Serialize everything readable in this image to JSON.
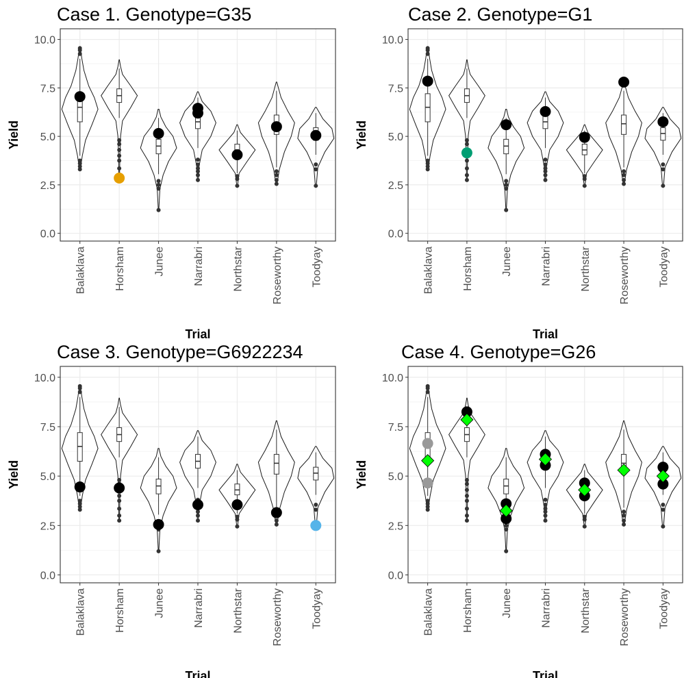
{
  "chart_data": [
    {
      "type": "violin",
      "title": "Case 1. Genotype=G35",
      "xlabel": "Trial",
      "ylabel": "Yield",
      "ylim": [
        0,
        10.5
      ],
      "yticks": [
        "0.0",
        "2.5",
        "5.0",
        "7.5",
        "10.0"
      ],
      "categories": [
        "Balaklava",
        "Horsham",
        "Junee",
        "Narrabri",
        "Northstar",
        "Roseworthy",
        "Toodyay"
      ],
      "highlight_points": [
        {
          "trial": "Balaklava",
          "y": 7.05,
          "color": "#000000",
          "shape": "circle"
        },
        {
          "trial": "Horsham",
          "y": 2.85,
          "color": "#E69F00",
          "shape": "circle"
        },
        {
          "trial": "Junee",
          "y": 5.15,
          "color": "#000000",
          "shape": "circle"
        },
        {
          "trial": "Narrabri",
          "y": 6.45,
          "color": "#000000",
          "shape": "circle"
        },
        {
          "trial": "Narrabri",
          "y": 6.2,
          "color": "#000000",
          "shape": "circle"
        },
        {
          "trial": "Northstar",
          "y": 4.05,
          "color": "#000000",
          "shape": "circle"
        },
        {
          "trial": "Roseworthy",
          "y": 5.5,
          "color": "#000000",
          "shape": "circle"
        },
        {
          "trial": "Toodyay",
          "y": 5.05,
          "color": "#000000",
          "shape": "circle"
        }
      ]
    },
    {
      "type": "violin",
      "title": "Case 2. Genotype=G1",
      "xlabel": "Trial",
      "ylabel": "Yield",
      "ylim": [
        0,
        10.5
      ],
      "yticks": [
        "0.0",
        "2.5",
        "5.0",
        "7.5",
        "10.0"
      ],
      "categories": [
        "Balaklava",
        "Horsham",
        "Junee",
        "Narrabri",
        "Northstar",
        "Roseworthy",
        "Toodyay"
      ],
      "highlight_points": [
        {
          "trial": "Balaklava",
          "y": 7.85,
          "color": "#000000",
          "shape": "circle"
        },
        {
          "trial": "Horsham",
          "y": 4.15,
          "color": "#009E73",
          "shape": "circle"
        },
        {
          "trial": "Junee",
          "y": 5.6,
          "color": "#000000",
          "shape": "circle"
        },
        {
          "trial": "Narrabri",
          "y": 6.28,
          "color": "#000000",
          "shape": "circle"
        },
        {
          "trial": "Northstar",
          "y": 4.95,
          "color": "#000000",
          "shape": "circle"
        },
        {
          "trial": "Roseworthy",
          "y": 7.8,
          "color": "#000000",
          "shape": "circle"
        },
        {
          "trial": "Toodyay",
          "y": 5.75,
          "color": "#000000",
          "shape": "circle"
        }
      ]
    },
    {
      "type": "violin",
      "title": "Case 3. Genotype=G6922234",
      "xlabel": "Trial",
      "ylabel": "Yield",
      "ylim": [
        0,
        10.5
      ],
      "yticks": [
        "0.0",
        "2.5",
        "5.0",
        "7.5",
        "10.0"
      ],
      "categories": [
        "Balaklava",
        "Horsham",
        "Junee",
        "Narrabri",
        "Northstar",
        "Roseworthy",
        "Toodyay"
      ],
      "highlight_points": [
        {
          "trial": "Balaklava",
          "y": 4.45,
          "color": "#000000",
          "shape": "circle"
        },
        {
          "trial": "Horsham",
          "y": 4.4,
          "color": "#000000",
          "shape": "circle"
        },
        {
          "trial": "Junee",
          "y": 2.55,
          "color": "#000000",
          "shape": "circle"
        },
        {
          "trial": "Narrabri",
          "y": 3.55,
          "color": "#000000",
          "shape": "circle"
        },
        {
          "trial": "Northstar",
          "y": 3.55,
          "color": "#000000",
          "shape": "circle"
        },
        {
          "trial": "Roseworthy",
          "y": 3.15,
          "color": "#000000",
          "shape": "circle"
        },
        {
          "trial": "Toodyay",
          "y": 2.5,
          "color": "#56B4E9",
          "shape": "circle"
        }
      ]
    },
    {
      "type": "violin",
      "title": "Case 4. Genotype=G26",
      "xlabel": "Trial",
      "ylabel": "Yield",
      "ylim": [
        0,
        10.5
      ],
      "yticks": [
        "0.0",
        "2.5",
        "5.0",
        "7.5",
        "10.0"
      ],
      "categories": [
        "Balaklava",
        "Horsham",
        "Junee",
        "Narrabri",
        "Northstar",
        "Roseworthy",
        "Toodyay"
      ],
      "highlight_points": [
        {
          "trial": "Balaklava",
          "y": 6.65,
          "color": "#999999",
          "shape": "circle"
        },
        {
          "trial": "Balaklava",
          "y": 4.65,
          "color": "#999999",
          "shape": "circle"
        },
        {
          "trial": "Balaklava",
          "y": 5.78,
          "color": "#00FF00",
          "shape": "diamond"
        },
        {
          "trial": "Horsham",
          "y": 8.25,
          "color": "#000000",
          "shape": "circle"
        },
        {
          "trial": "Horsham",
          "y": 7.85,
          "color": "#00FF00",
          "shape": "diamond"
        },
        {
          "trial": "Junee",
          "y": 3.6,
          "color": "#000000",
          "shape": "circle"
        },
        {
          "trial": "Junee",
          "y": 2.85,
          "color": "#000000",
          "shape": "circle"
        },
        {
          "trial": "Junee",
          "y": 3.25,
          "color": "#00FF00",
          "shape": "diamond"
        },
        {
          "trial": "Narrabri",
          "y": 6.1,
          "color": "#000000",
          "shape": "circle"
        },
        {
          "trial": "Narrabri",
          "y": 5.55,
          "color": "#000000",
          "shape": "circle"
        },
        {
          "trial": "Narrabri",
          "y": 5.85,
          "color": "#00FF00",
          "shape": "diamond"
        },
        {
          "trial": "Northstar",
          "y": 4.65,
          "color": "#000000",
          "shape": "circle"
        },
        {
          "trial": "Northstar",
          "y": 4.0,
          "color": "#000000",
          "shape": "circle"
        },
        {
          "trial": "Northstar",
          "y": 4.3,
          "color": "#00FF00",
          "shape": "diamond"
        },
        {
          "trial": "Roseworthy",
          "y": 5.3,
          "color": "#00FF00",
          "shape": "diamond"
        },
        {
          "trial": "Toodyay",
          "y": 5.45,
          "color": "#000000",
          "shape": "circle"
        },
        {
          "trial": "Toodyay",
          "y": 4.6,
          "color": "#000000",
          "shape": "circle"
        },
        {
          "trial": "Toodyay",
          "y": 5.0,
          "color": "#00FF00",
          "shape": "diamond"
        }
      ]
    }
  ],
  "trial_distributions": {
    "Balaklava": {
      "median": 6.5,
      "q1": 5.75,
      "q3": 7.2,
      "whisker_low": 4.0,
      "whisker_high": 9.0,
      "outliers": [
        3.3,
        3.45,
        3.6,
        3.75,
        9.25,
        9.45,
        9.55
      ],
      "density": [
        [
          3.3,
          0.01
        ],
        [
          4.0,
          0.06
        ],
        [
          4.8,
          0.14
        ],
        [
          5.6,
          0.3
        ],
        [
          6.4,
          0.45
        ],
        [
          7.0,
          0.36
        ],
        [
          7.6,
          0.22
        ],
        [
          8.4,
          0.1
        ],
        [
          9.0,
          0.05
        ],
        [
          9.6,
          0.01
        ]
      ]
    },
    "Horsham": {
      "median": 7.1,
      "q1": 6.75,
      "q3": 7.45,
      "whisker_low": 5.95,
      "whisker_high": 8.5,
      "outliers": [
        2.75,
        3.0,
        3.35,
        3.75,
        4.0,
        4.3,
        4.6,
        4.8
      ],
      "density": [
        [
          2.75,
          0.01
        ],
        [
          4.0,
          0.02
        ],
        [
          5.0,
          0.04
        ],
        [
          5.8,
          0.1
        ],
        [
          6.5,
          0.35
        ],
        [
          7.1,
          0.55
        ],
        [
          7.6,
          0.35
        ],
        [
          8.2,
          0.1
        ],
        [
          8.6,
          0.04
        ],
        [
          8.95,
          0.005
        ]
      ]
    },
    "Junee": {
      "median": 4.5,
      "q1": 4.1,
      "q3": 4.85,
      "whisker_low": 3.05,
      "whisker_high": 5.95,
      "outliers": [
        1.2,
        2.3,
        2.5,
        2.7
      ],
      "density": [
        [
          1.2,
          0.005
        ],
        [
          2.3,
          0.03
        ],
        [
          3.0,
          0.1
        ],
        [
          3.7,
          0.22
        ],
        [
          4.4,
          0.4
        ],
        [
          5.0,
          0.32
        ],
        [
          5.5,
          0.16
        ],
        [
          6.0,
          0.05
        ],
        [
          6.4,
          0.01
        ]
      ]
    },
    "Narrabri": {
      "median": 5.75,
      "q1": 5.4,
      "q3": 6.1,
      "whisker_low": 4.4,
      "whisker_high": 7.0,
      "outliers": [
        2.75,
        3.0,
        3.2,
        3.35,
        3.55,
        3.8
      ],
      "density": [
        [
          2.75,
          0.01
        ],
        [
          3.5,
          0.03
        ],
        [
          4.3,
          0.1
        ],
        [
          5.0,
          0.3
        ],
        [
          5.7,
          0.42
        ],
        [
          6.3,
          0.3
        ],
        [
          6.8,
          0.1
        ],
        [
          7.3,
          0.01
        ]
      ]
    },
    "Northstar": {
      "median": 4.3,
      "q1": 4.05,
      "q3": 4.6,
      "whisker_low": 3.1,
      "whisker_high": 5.3,
      "outliers": [
        2.45,
        2.8,
        2.95
      ],
      "density": [
        [
          2.45,
          0.01
        ],
        [
          3.1,
          0.06
        ],
        [
          3.7,
          0.3
        ],
        [
          4.3,
          0.55
        ],
        [
          4.8,
          0.3
        ],
        [
          5.2,
          0.1
        ],
        [
          5.6,
          0.01
        ]
      ]
    },
    "Roseworthy": {
      "median": 5.65,
      "q1": 5.1,
      "q3": 6.1,
      "whisker_low": 3.4,
      "whisker_high": 7.35,
      "outliers": [
        2.55,
        2.75,
        3.0,
        3.2
      ],
      "density": [
        [
          2.55,
          0.01
        ],
        [
          3.3,
          0.05
        ],
        [
          4.2,
          0.14
        ],
        [
          5.0,
          0.26
        ],
        [
          5.7,
          0.32
        ],
        [
          6.3,
          0.2
        ],
        [
          7.0,
          0.08
        ],
        [
          7.8,
          0.005
        ]
      ]
    },
    "Toodyay": {
      "median": 5.15,
      "q1": 4.8,
      "q3": 5.45,
      "whisker_low": 4.05,
      "whisker_high": 6.2,
      "outliers": [
        2.45,
        3.3,
        3.55
      ],
      "density": [
        [
          2.45,
          0.01
        ],
        [
          3.4,
          0.04
        ],
        [
          4.2,
          0.18
        ],
        [
          4.9,
          0.36
        ],
        [
          5.4,
          0.32
        ],
        [
          5.9,
          0.14
        ],
        [
          6.5,
          0.01
        ]
      ]
    }
  }
}
